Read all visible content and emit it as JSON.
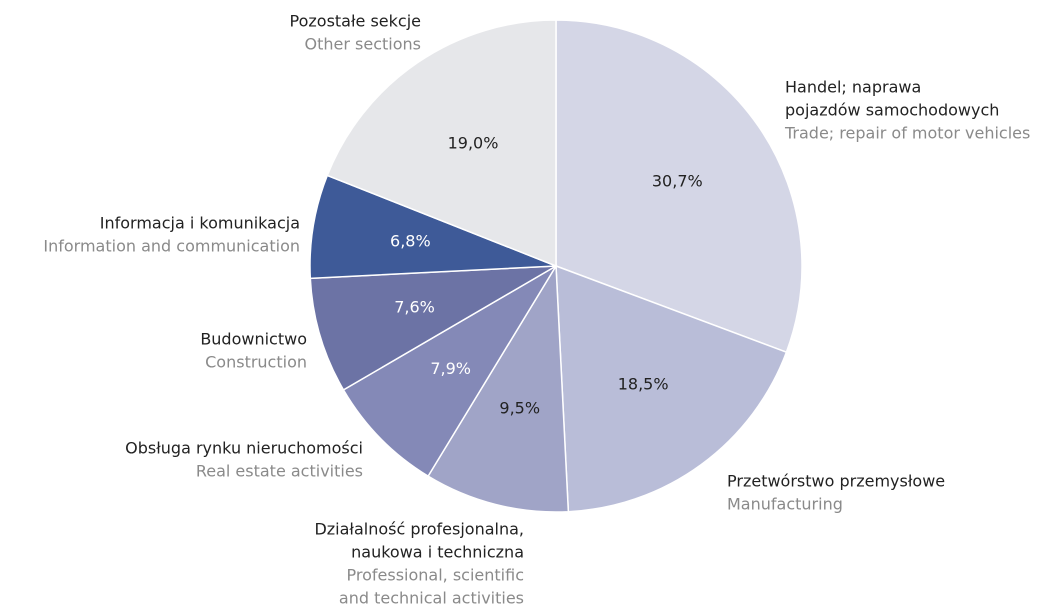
{
  "chart_data": {
    "type": "pie",
    "categories": [
      [
        "Handel; naprawa",
        "pojazdów samochodowych"
      ],
      [
        "Przetwórstwo przemysłowe"
      ],
      [
        "Działalność profesjonalna,",
        "naukowa i techniczna"
      ],
      [
        "Obsługa rynku nieruchomości"
      ],
      [
        "Budownictwo"
      ],
      [
        "Informacja i komunikacja"
      ],
      [
        "Pozostałe sekcje"
      ]
    ],
    "categories_en": [
      [
        "Trade; repair of motor vehicles"
      ],
      [
        "Manufacturing"
      ],
      [
        "Professional, scientific",
        "and technical activities"
      ],
      [
        "Real estate activities"
      ],
      [
        "Construction"
      ],
      [
        "Information and communication"
      ],
      [
        "Other sections"
      ]
    ],
    "values": [
      30.7,
      18.5,
      9.5,
      7.9,
      7.6,
      6.8,
      19.0
    ],
    "value_labels": [
      "30,7%",
      "18,5%",
      "9,5%",
      "7,9%",
      "7,6%",
      "6,8%",
      "19,0%"
    ],
    "colors": [
      "#d4d6e6",
      "#b9bdd8",
      "#a0a4c7",
      "#8489b7",
      "#6c73a5",
      "#3e5a98",
      "#e6e7ea"
    ]
  }
}
